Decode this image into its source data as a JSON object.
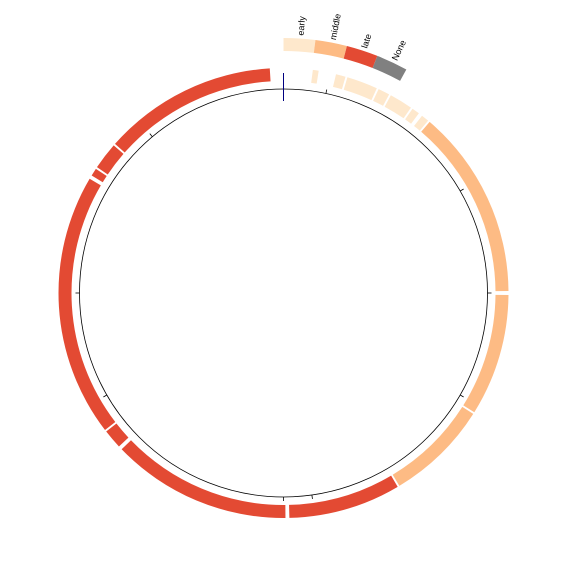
{
  "chart_data": {
    "type": "circular-track",
    "colors": {
      "early": "#fee8cc",
      "middle": "#fdbb84",
      "late": "#e34a33",
      "None": "#808080",
      "axis": "#000000",
      "start_marker": "#000080"
    },
    "legend": [
      {
        "label": "early",
        "key": "early"
      },
      {
        "label": "middle",
        "key": "middle"
      },
      {
        "label": "late",
        "key": "late"
      },
      {
        "label": "None",
        "key": "None"
      }
    ],
    "track_segments": [
      {
        "start": 7.5,
        "end": 9.0,
        "category": "early"
      },
      {
        "start": 13.5,
        "end": 16.0,
        "category": "early"
      },
      {
        "start": 16.5,
        "end": 24.5,
        "category": "early"
      },
      {
        "start": 25.0,
        "end": 28.0,
        "category": "early"
      },
      {
        "start": 28.5,
        "end": 34.5,
        "category": "early"
      },
      {
        "start": 35.0,
        "end": 37.0,
        "category": "early"
      },
      {
        "start": 38.0,
        "end": 40.0,
        "category": "early"
      },
      {
        "start": 40.5,
        "end": 89.5,
        "category": "middle"
      },
      {
        "start": 90.5,
        "end": 122.0,
        "category": "middle"
      },
      {
        "start": 122.5,
        "end": 149.0,
        "category": "middle"
      },
      {
        "start": 149.5,
        "end": 178.5,
        "category": "late"
      },
      {
        "start": 179.5,
        "end": 226.0,
        "category": "late"
      },
      {
        "start": 227.0,
        "end": 232.0,
        "category": "late"
      },
      {
        "start": 232.5,
        "end": 300.5,
        "category": "late"
      },
      {
        "start": 301.5,
        "end": 303.5,
        "category": "late"
      },
      {
        "start": 304.0,
        "end": 311.0,
        "category": "late"
      },
      {
        "start": 311.5,
        "end": 356.5,
        "category": "late"
      }
    ],
    "ticks": [
      0,
      12,
      60,
      90,
      120,
      172,
      180,
      240,
      270,
      320
    ],
    "start_marker": 0
  }
}
